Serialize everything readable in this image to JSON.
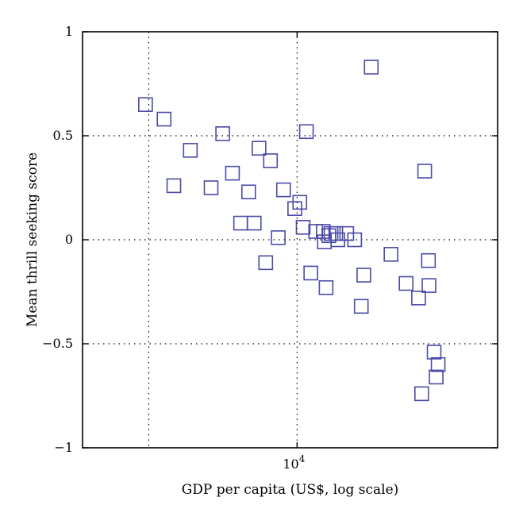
{
  "chart_data": {
    "type": "scatter",
    "xlabel": "GDP per capita (US$, log scale)",
    "ylabel": "Mean thrill seeking score",
    "x_scale": "log",
    "xlim": [
      2100,
      43000
    ],
    "ylim": [
      -1,
      1
    ],
    "x_ticks": [
      {
        "value": 10000,
        "base": "10",
        "exp": "4"
      }
    ],
    "x_grid": [
      3400,
      10000
    ],
    "y_ticks": [
      {
        "value": 1,
        "label": "1"
      },
      {
        "value": 0.5,
        "label": "0.5"
      },
      {
        "value": 0,
        "label": "0"
      },
      {
        "value": -0.5,
        "label": "−0.5"
      },
      {
        "value": -1,
        "label": "−1"
      }
    ],
    "y_grid": [
      0.5,
      0,
      -0.5
    ],
    "grid": true,
    "marker": "square",
    "marker_color": "#4a4aa8",
    "points": [
      {
        "x": 3320,
        "y": 0.65
      },
      {
        "x": 3800,
        "y": 0.58
      },
      {
        "x": 4080,
        "y": 0.26
      },
      {
        "x": 4600,
        "y": 0.43
      },
      {
        "x": 5350,
        "y": 0.25
      },
      {
        "x": 5820,
        "y": 0.51
      },
      {
        "x": 6250,
        "y": 0.32
      },
      {
        "x": 6630,
        "y": 0.08
      },
      {
        "x": 7030,
        "y": 0.23
      },
      {
        "x": 7320,
        "y": 0.08
      },
      {
        "x": 7580,
        "y": 0.44
      },
      {
        "x": 7960,
        "y": -0.11
      },
      {
        "x": 8240,
        "y": 0.38
      },
      {
        "x": 8720,
        "y": 0.01
      },
      {
        "x": 9060,
        "y": 0.24
      },
      {
        "x": 9830,
        "y": 0.15
      },
      {
        "x": 10200,
        "y": 0.18
      },
      {
        "x": 10450,
        "y": 0.06
      },
      {
        "x": 10700,
        "y": 0.52
      },
      {
        "x": 11050,
        "y": -0.16
      },
      {
        "x": 11450,
        "y": 0.04
      },
      {
        "x": 12100,
        "y": 0.04
      },
      {
        "x": 12200,
        "y": -0.01
      },
      {
        "x": 12350,
        "y": -0.23
      },
      {
        "x": 12600,
        "y": 0.02
      },
      {
        "x": 12800,
        "y": 0.03
      },
      {
        "x": 13250,
        "y": 0.03
      },
      {
        "x": 13450,
        "y": 0.0
      },
      {
        "x": 14350,
        "y": 0.03
      },
      {
        "x": 15200,
        "y": 0.0
      },
      {
        "x": 15950,
        "y": -0.32
      },
      {
        "x": 16250,
        "y": -0.17
      },
      {
        "x": 17150,
        "y": 0.83
      },
      {
        "x": 19800,
        "y": -0.07
      },
      {
        "x": 22100,
        "y": -0.21
      },
      {
        "x": 24200,
        "y": -0.28
      },
      {
        "x": 24750,
        "y": -0.74
      },
      {
        "x": 25300,
        "y": 0.33
      },
      {
        "x": 26000,
        "y": -0.1
      },
      {
        "x": 26100,
        "y": -0.22
      },
      {
        "x": 27100,
        "y": -0.54
      },
      {
        "x": 27500,
        "y": -0.66
      },
      {
        "x": 27900,
        "y": -0.6
      }
    ]
  }
}
